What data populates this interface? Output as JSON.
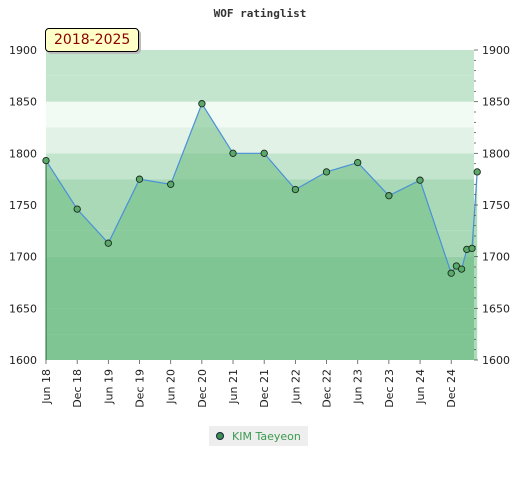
{
  "chart_data": {
    "type": "area",
    "title": "WOF ratinglist",
    "period": "2018-2025",
    "ylim": [
      1600,
      1900
    ],
    "yticks": [
      1600,
      1650,
      1700,
      1750,
      1800,
      1850,
      1900
    ],
    "xlim": [
      "2018-06",
      "2025-04"
    ],
    "xticks": [
      {
        "label": "Jun 18",
        "date": "2018-06"
      },
      {
        "label": "Dec 18",
        "date": "2018-12"
      },
      {
        "label": "Jun 19",
        "date": "2019-06"
      },
      {
        "label": "Dec 19",
        "date": "2019-12"
      },
      {
        "label": "Jun 20",
        "date": "2020-06"
      },
      {
        "label": "Dec 20",
        "date": "2020-12"
      },
      {
        "label": "Jun 21",
        "date": "2021-06"
      },
      {
        "label": "Dec 21",
        "date": "2021-12"
      },
      {
        "label": "Jun 22",
        "date": "2022-06"
      },
      {
        "label": "Dec 22",
        "date": "2022-12"
      },
      {
        "label": "Jun 23",
        "date": "2023-06"
      },
      {
        "label": "Dec 23",
        "date": "2023-12"
      },
      {
        "label": "Jun 24",
        "date": "2024-06"
      },
      {
        "label": "Dec 24",
        "date": "2024-12"
      }
    ],
    "series": [
      {
        "name": "KIM Taeyeon",
        "x": [
          "2018-06",
          "2018-12",
          "2019-06",
          "2019-12",
          "2020-06",
          "2020-12",
          "2021-06",
          "2021-12",
          "2022-06",
          "2022-12",
          "2023-06",
          "2023-12",
          "2024-06",
          "2024-12",
          "2025-01",
          "2025-02",
          "2025-03",
          "2025-04",
          "2025-05"
        ],
        "values": [
          1793,
          1746,
          1713,
          1775,
          1770,
          1848,
          1800,
          1800,
          1765,
          1782,
          1791,
          1759,
          1774,
          1684,
          1691,
          1688,
          1707,
          1708,
          1782
        ]
      }
    ],
    "grid": true,
    "legend_position": "bottom-center"
  },
  "colors": {
    "line": "#4a90d9",
    "area": "#6dbd83",
    "marker_fill": "#5aa86b",
    "bands": [
      "#94cfa6",
      "#a9d9b7",
      "#c3e5cd",
      "#e2f2e6",
      "#f2faf4"
    ]
  }
}
